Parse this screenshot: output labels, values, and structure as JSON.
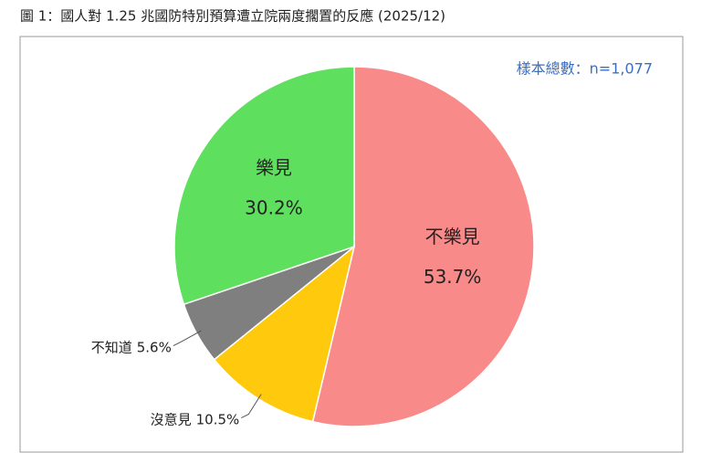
{
  "chart_data": {
    "type": "pie",
    "title": "圖 1：國人對 1.25 兆國防特別預算遭立院兩度擱置的反應 (2025/12)",
    "annotation": "樣本總數：n=1,077",
    "categories": [
      "不樂見",
      "沒意見",
      "不知道",
      "樂見"
    ],
    "values": [
      53.7,
      10.5,
      5.6,
      30.2
    ],
    "value_labels": [
      "53.7%",
      "10.5%",
      "5.6%",
      "30.2%"
    ],
    "colors": [
      "#f98a8a",
      "#ffc90e",
      "#7f7f7f",
      "#5ee05e"
    ]
  }
}
